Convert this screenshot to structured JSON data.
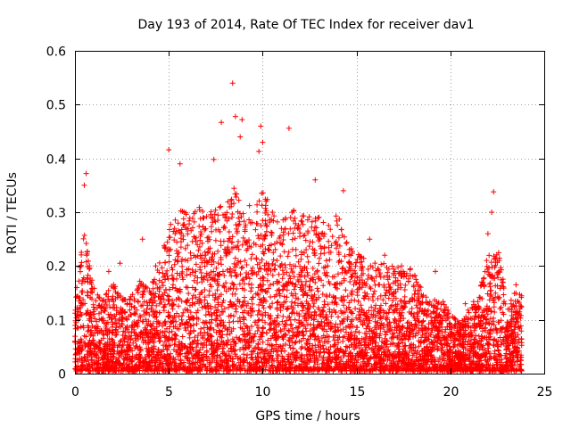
{
  "chart_data": {
    "type": "scatter",
    "title": "Day 193 of 2014, Rate Of TEC Index for receiver dav1",
    "xlabel": "GPS time / hours",
    "ylabel": "ROTI / TECUs",
    "xlim": [
      0,
      25
    ],
    "ylim": [
      0,
      0.6
    ],
    "xticks": [
      0,
      5,
      10,
      15,
      20,
      25
    ],
    "yticks": [
      0,
      0.1,
      0.2,
      0.3,
      0.4,
      0.5,
      0.6
    ],
    "xtick_labels": [
      "0",
      "5",
      "10",
      "15",
      "20",
      "25"
    ],
    "ytick_labels": [
      "0",
      "0.1",
      "0.2",
      "0.3",
      "0.4",
      "0.5",
      "0.6"
    ],
    "grid": true,
    "marker": "+",
    "series_color": "#ff0000",
    "series": [
      {
        "name": "ROTI",
        "x": [
          8.4,
          8.55,
          8.9,
          7.8,
          9.9,
          11.4,
          5.0,
          9.8,
          5.6,
          12.8,
          8.8,
          10.0,
          7.4,
          0.6,
          14.3,
          22.3,
          22.2,
          3.6,
          2.4,
          0.1,
          0.5,
          22.0,
          23.5,
          19.2,
          17.4,
          16.5,
          15.7,
          20.8,
          1.8,
          4.3
        ],
        "y": [
          0.54,
          0.478,
          0.472,
          0.467,
          0.46,
          0.456,
          0.416,
          0.413,
          0.39,
          0.36,
          0.44,
          0.43,
          0.398,
          0.372,
          0.34,
          0.338,
          0.3,
          0.25,
          0.205,
          0.16,
          0.35,
          0.26,
          0.165,
          0.19,
          0.2,
          0.22,
          0.25,
          0.13,
          0.19,
          0.2
        ]
      }
    ],
    "envelope": {
      "x": [
        0,
        0.5,
        1,
        1.5,
        2,
        2.5,
        3,
        3.5,
        4,
        4.5,
        5,
        5.5,
        6,
        6.5,
        7,
        7.5,
        8,
        8.5,
        9,
        9.5,
        10,
        10.5,
        11,
        11.5,
        12,
        12.5,
        13,
        13.5,
        14,
        14.5,
        15,
        15.5,
        16,
        16.5,
        17,
        17.5,
        18,
        18.5,
        19,
        19.5,
        20,
        20.5,
        21,
        21.5,
        22,
        22.5,
        23,
        23.5,
        23.8
      ],
      "y": [
        0.14,
        0.26,
        0.16,
        0.13,
        0.17,
        0.14,
        0.14,
        0.18,
        0.16,
        0.2,
        0.27,
        0.3,
        0.3,
        0.3,
        0.33,
        0.3,
        0.33,
        0.34,
        0.33,
        0.3,
        0.34,
        0.3,
        0.28,
        0.3,
        0.3,
        0.3,
        0.29,
        0.28,
        0.3,
        0.25,
        0.22,
        0.21,
        0.2,
        0.2,
        0.2,
        0.19,
        0.19,
        0.15,
        0.13,
        0.14,
        0.11,
        0.09,
        0.12,
        0.14,
        0.22,
        0.25,
        0.12,
        0.15,
        0.14
      ]
    }
  }
}
